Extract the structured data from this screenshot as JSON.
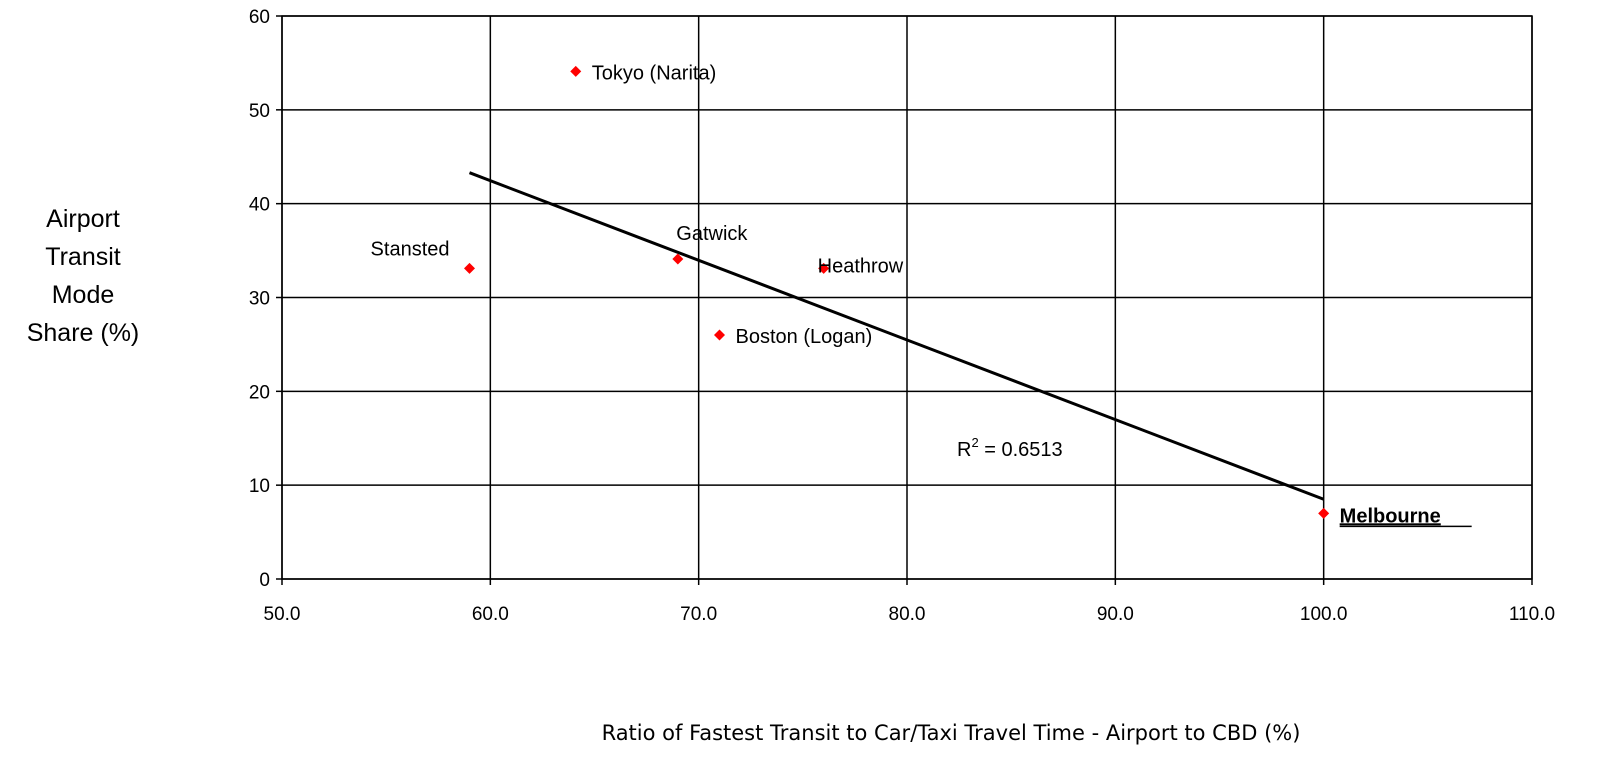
{
  "chart_data": {
    "type": "scatter",
    "ylabel_lines": [
      "Airport",
      "Transit",
      "Mode",
      "Share (%)"
    ],
    "xlabel": "Ratio of Fastest Transit to Car/Taxi Travel Time - Airport to CBD (%)",
    "xlim": [
      50,
      110
    ],
    "ylim": [
      0,
      60
    ],
    "x_ticks": [
      "50.0",
      "60.0",
      "70.0",
      "80.0",
      "90.0",
      "100.0",
      "110.0"
    ],
    "y_ticks": [
      "0",
      "10",
      "20",
      "30",
      "40",
      "50",
      "60"
    ],
    "grid": true,
    "marker_color": "#ff0000",
    "points": [
      {
        "label": "Tokyo (Narita)",
        "x": 64.1,
        "y": 54.1
      },
      {
        "label": "Stansted",
        "x": 59.0,
        "y": 33.1
      },
      {
        "label": "Gatwick",
        "x": 69.0,
        "y": 34.1
      },
      {
        "label": "Heathrow",
        "x": 76.0,
        "y": 33.1
      },
      {
        "label": "Boston (Logan)",
        "x": 71.0,
        "y": 26.0
      },
      {
        "label": "Melbourne",
        "x": 100.0,
        "y": 7.0,
        "emphasis": true
      }
    ],
    "trendline": {
      "x": [
        59.0,
        100.0
      ],
      "y": [
        43.3,
        8.5
      ]
    },
    "r_squared_label": {
      "prefix": "R",
      "exponent": "2",
      "text": " = 0.6513"
    }
  }
}
